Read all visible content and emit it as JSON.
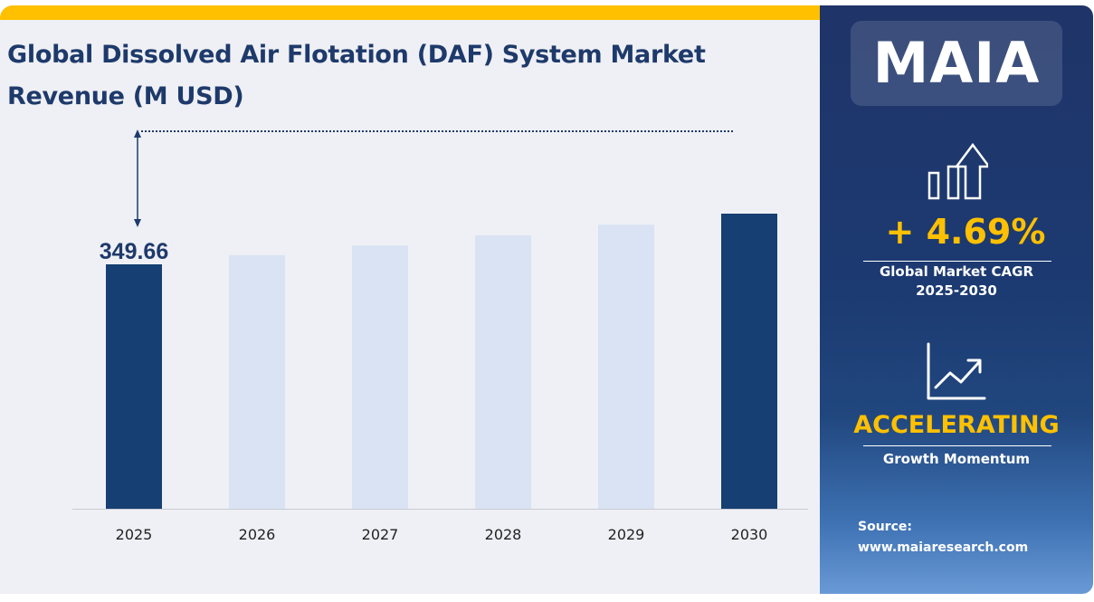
{
  "title": "Global Dissolved Air Flotation (DAF) System Market Revenue (M USD)",
  "title_line1": "Global Dissolved Air Flotation (DAF) System Market",
  "title_line2": "Revenue (M USD)",
  "chart_data": {
    "type": "bar",
    "title": "Global Dissolved Air Flotation (DAF) System Market Revenue (M USD)",
    "categories": [
      "2025",
      "2026",
      "2027",
      "2028",
      "2029",
      "2030"
    ],
    "values": [
      349.66,
      366.06,
      383.23,
      401.2,
      420.02,
      439.72
    ],
    "data_labels": {
      "2025": "349.66"
    },
    "highlighted": [
      "2025",
      "2030"
    ],
    "xlabel": "",
    "ylabel": "",
    "grid": false,
    "colors": {
      "highlight": "#163f73",
      "normal": "#dae3f3",
      "accent": "#ffc000"
    }
  },
  "panel": {
    "logo": "MAIA",
    "cagr_value": "+ 4.69%",
    "cagr_label": "Global Market CAGR",
    "cagr_period": "2025-2030",
    "momentum_value": "ACCELERATING",
    "momentum_label": "Growth Momentum",
    "source_label": "Source:",
    "source_url": "www.maiaresearch.com",
    "icons": [
      "bar-chart-up-arrow-icon",
      "line-chart-trend-icon"
    ]
  }
}
